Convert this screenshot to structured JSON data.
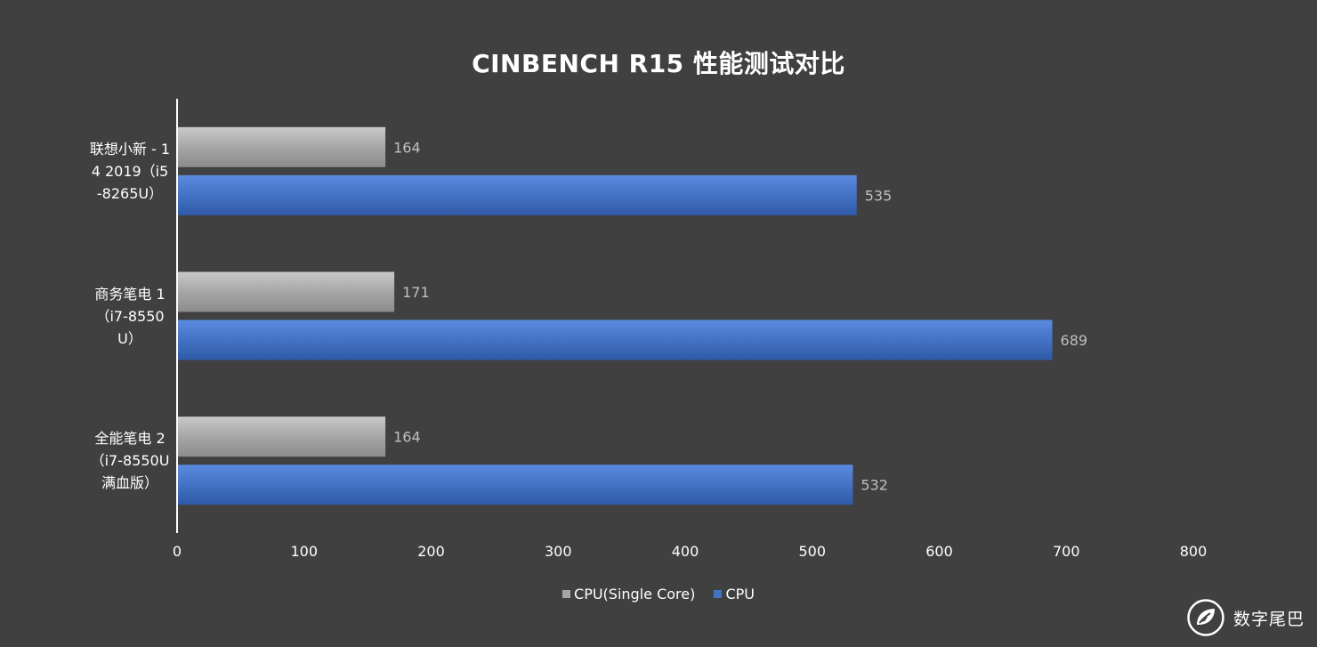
{
  "chart_data": {
    "type": "bar",
    "orientation": "horizontal",
    "title": "CINBENCH R15 性能测试对比",
    "categories": [
      "联想小新 - 14 2019（i5-8265U）",
      "商务笔电 1（i7-8550U）",
      "全能笔电 2（i7-8550U 满血版）"
    ],
    "series": [
      {
        "name": "CPU(Single Core)",
        "color": "#a6a6a6",
        "values": [
          164,
          171,
          164
        ]
      },
      {
        "name": "CPU",
        "color": "#4472c4",
        "values": [
          535,
          689,
          532
        ]
      }
    ],
    "xlim": [
      0,
      800
    ],
    "xticks": [
      "0",
      "100",
      "200",
      "300",
      "400",
      "500",
      "600",
      "700",
      "800"
    ],
    "grid": false,
    "legend_position": "bottom",
    "data_labels": true
  },
  "colors": {
    "background": "#404040",
    "text": "#ffffff",
    "data_label": "#bfbfbf",
    "single_core": "#a6a6a6",
    "multi_core": "#4472c4"
  },
  "watermark": {
    "text": "数字尾巴",
    "icon": "leaf-logo-icon"
  }
}
